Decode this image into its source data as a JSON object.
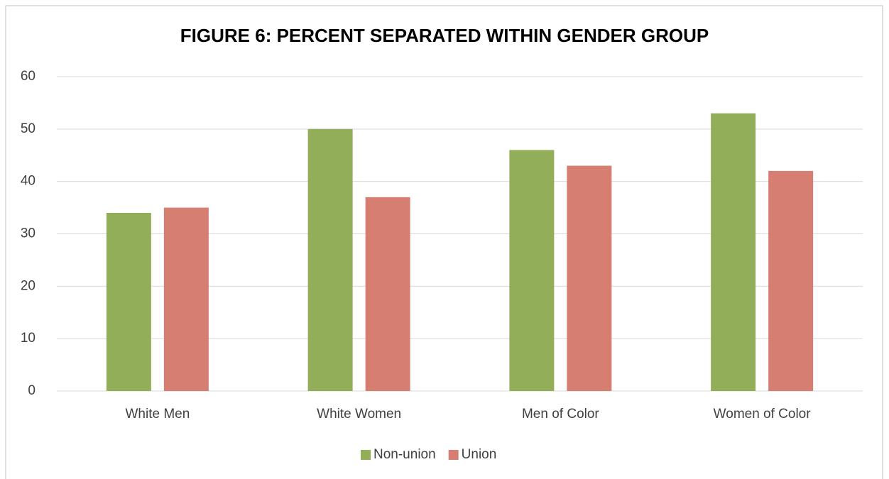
{
  "chart_data": {
    "type": "bar",
    "title": "FIGURE 6: PERCENT SEPARATED WITHIN GENDER GROUP",
    "categories": [
      "White Men",
      "White Women",
      "Men of Color",
      "Women of Color"
    ],
    "series": [
      {
        "name": "Non-union",
        "color": "#93ae59",
        "values": [
          34,
          50,
          46,
          53
        ]
      },
      {
        "name": "Union",
        "color": "#d67e71",
        "values": [
          35,
          37,
          43,
          42
        ]
      }
    ],
    "ylim": [
      0,
      60
    ],
    "yticks": [
      0,
      10,
      20,
      30,
      40,
      50,
      60
    ],
    "grid": true,
    "legend": "bottom"
  }
}
